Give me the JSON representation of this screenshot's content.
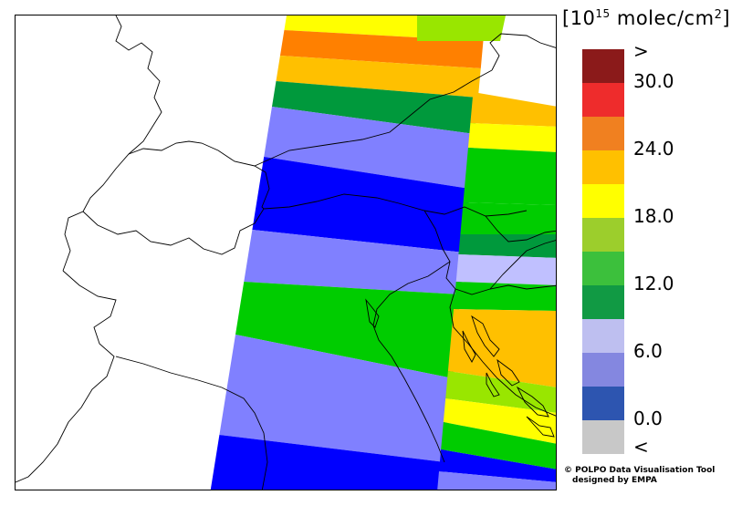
{
  "legend": {
    "unit_prefix": "[10",
    "unit_exponent": "15",
    "unit_rest": " molec/cm",
    "unit_sq": "2",
    "unit_close": "]",
    "swatches": [
      "#8b1a1a",
      "#ee2c2c",
      "#f08020",
      "#ffc000",
      "#ffff00",
      "#9cce2c",
      "#3cc03c",
      "#119a44",
      "#bebff0",
      "#8487e0",
      "#2d55b0",
      "#c8c8c8"
    ],
    "labels": [
      ">",
      "30.0",
      "24.0",
      "18.0",
      "12.0",
      "6.0",
      "0.0",
      "<"
    ]
  },
  "map": {
    "band_colors": {
      "yellow": "#ffff00",
      "orange": "#ff8000",
      "amber": "#ffc000",
      "green": "#00cc00",
      "darkgreen": "#00993c",
      "lime": "#99e600",
      "lavender": "#8080ff",
      "blue": "#0000ff",
      "lightlavender": "#c0c0ff"
    }
  },
  "credit": {
    "line1": "© POLPO Data Visualisation Tool",
    "line2": "designed by EMPA"
  }
}
